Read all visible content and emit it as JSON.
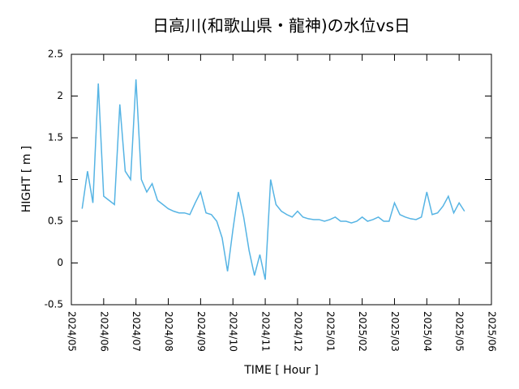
{
  "chart_data": {
    "type": "line",
    "title": "日高川(和歌山県・龍神)の水位vs日",
    "x_label": "TIME [ Hour ]",
    "y_label": "HIGHT [ m ]",
    "categories": [
      "2024/05",
      null,
      null,
      null,
      null,
      null,
      "2024/06",
      null,
      null,
      null,
      null,
      null,
      "2024/07",
      null,
      null,
      null,
      null,
      null,
      "2024/08",
      null,
      null,
      null,
      null,
      null,
      "2024/09",
      null,
      null,
      null,
      null,
      null,
      "2024/10",
      null,
      null,
      null,
      null,
      null,
      "2024/11",
      null,
      null,
      null,
      null,
      null,
      "2024/12",
      null,
      null,
      null,
      null,
      null,
      "2025/01",
      null,
      null,
      null,
      null,
      null,
      "2025/02",
      null,
      null,
      null,
      null,
      null,
      "2025/03",
      null,
      null,
      null,
      null,
      null,
      "2025/04",
      null,
      null,
      null,
      null,
      null,
      "2025/05",
      null,
      null,
      null,
      null,
      null,
      "2025/06"
    ],
    "values": [
      null,
      null,
      0.65,
      1.1,
      0.72,
      2.15,
      0.8,
      0.75,
      0.7,
      1.9,
      1.1,
      1.0,
      2.2,
      1.0,
      0.85,
      0.95,
      0.75,
      0.7,
      0.65,
      0.62,
      0.6,
      0.6,
      0.58,
      0.72,
      0.85,
      0.6,
      0.58,
      0.5,
      0.3,
      -0.1,
      0.4,
      0.85,
      0.55,
      0.15,
      -0.15,
      0.1,
      -0.2,
      1.0,
      0.7,
      0.62,
      0.58,
      0.55,
      0.62,
      0.55,
      0.53,
      0.52,
      0.52,
      0.5,
      0.52,
      0.55,
      0.5,
      0.5,
      0.48,
      0.5,
      0.55,
      0.5,
      0.52,
      0.55,
      0.5,
      0.5,
      0.72,
      0.58,
      0.55,
      0.53,
      0.52,
      0.55,
      0.85,
      0.58,
      0.6,
      0.68,
      0.8,
      0.6,
      0.72,
      0.62,
      null,
      null,
      null,
      null,
      null
    ],
    "color": "#56b4e4",
    "ylim": [
      -0.5,
      2.5
    ],
    "yticks": [
      -0.5,
      0,
      0.5,
      1,
      1.5,
      2,
      2.5
    ],
    "grid": false
  }
}
